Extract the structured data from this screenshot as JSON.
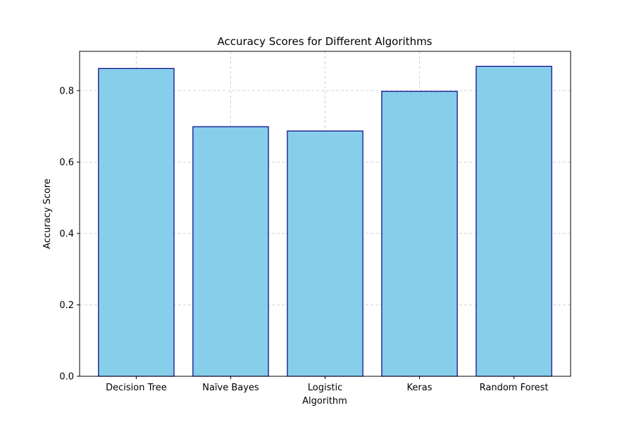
{
  "chart_data": {
    "type": "bar",
    "title": "Accuracy Scores for Different Algorithms",
    "xlabel": "Algorithm",
    "ylabel": "Accuracy Score",
    "categories": [
      "Decision Tree",
      "Naïve Bayes",
      "Logistic",
      "Keras",
      "Random Forest"
    ],
    "values": [
      0.862,
      0.699,
      0.687,
      0.798,
      0.868
    ],
    "ylim": [
      0,
      0.91
    ],
    "yticks": [
      0.0,
      0.2,
      0.4,
      0.6,
      0.8
    ],
    "ytick_labels": [
      "0.0",
      "0.2",
      "0.4",
      "0.6",
      "0.8"
    ],
    "grid": true,
    "colors": {
      "bar_fill": "#87ceeb",
      "bar_edge": "#000080",
      "grid": "#d3d3d3",
      "axis": "#000000"
    }
  }
}
